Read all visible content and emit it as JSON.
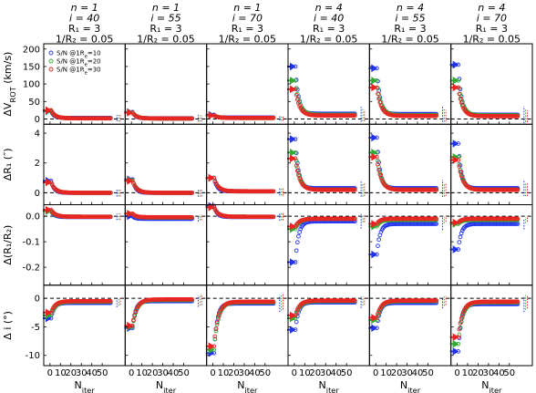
{
  "chart_data": {
    "type": "scatter",
    "columns": [
      {
        "title": [
          "n = 1",
          "i = 40",
          "R₁ = 3",
          "1/R₂ = 0.05"
        ]
      },
      {
        "title": [
          "n = 1",
          "i = 55",
          "R₁ = 3",
          "1/R₂ = 0.05"
        ]
      },
      {
        "title": [
          "n = 1",
          "i = 70",
          "R₁ = 3",
          "1/R₂ = 0.05"
        ]
      },
      {
        "title": [
          "n = 4",
          "i = 40",
          "R₁ = 3",
          "1/R₂ = 0.05"
        ]
      },
      {
        "title": [
          "n = 4",
          "i = 55",
          "R₁ = 3",
          "1/R₂ = 0.05"
        ]
      },
      {
        "title": [
          "n = 4",
          "i = 70",
          "R₁ = 3",
          "1/R₂ = 0.05"
        ]
      }
    ],
    "rows": [
      {
        "ylabel": "ΔV_ROT (km/s)",
        "ylim": [
          -15,
          215
        ],
        "yticks": [
          "0",
          "50",
          "100",
          "150",
          "200"
        ],
        "ytick_values": [
          0,
          50,
          100,
          150,
          200
        ],
        "ref": 0
      },
      {
        "ylabel": "ΔR₁ (″)",
        "ylim": [
          -0.8,
          4.6
        ],
        "yticks": [
          "0",
          "2",
          "4"
        ],
        "ytick_values": [
          0,
          2,
          4
        ],
        "ref": 0
      },
      {
        "ylabel": "Δ(R₁/R₂)",
        "ylim": [
          -0.27,
          0.045
        ],
        "yticks": [
          "0.0",
          "-0.1",
          "-0.2"
        ],
        "ytick_values": [
          0,
          -0.1,
          -0.2
        ],
        "ref": 0
      },
      {
        "ylabel": "Δ i (°)",
        "ylim": [
          -11.8,
          2.3
        ],
        "yticks": [
          "0",
          "-5",
          "-10"
        ],
        "ytick_values": [
          0,
          -5,
          -10
        ],
        "ref": 0
      }
    ],
    "xlabel": "N_iter",
    "xlim": [
      -6,
      72
    ],
    "xticks": [
      "0",
      "10",
      "20",
      "30",
      "40",
      "50"
    ],
    "xtick_values": [
      0,
      10,
      20,
      30,
      40,
      50
    ],
    "legend": {
      "placement": "top-left of first panel",
      "entries": [
        "S/N @1R_e=10",
        "S/N @1R_e=20",
        "S/N @1R_e=30"
      ]
    },
    "series": [
      {
        "name": "S/N @1R_e=10",
        "color": "#2233ee"
      },
      {
        "name": "S/N @1R_e=20",
        "color": "#33aa33"
      },
      {
        "name": "S/N @1R_e=30",
        "color": "#ee2222"
      }
    ],
    "panels": [
      [
        {
          "start": [
            22,
            23,
            25
          ],
          "final": [
            3,
            2,
            2
          ]
        },
        {
          "start": [
            0.8,
            0.7,
            0.7
          ],
          "final": [
            0.0,
            0.0,
            0.0
          ]
        },
        {
          "start": [
            0.02,
            0.02,
            0.025
          ],
          "final": [
            -0.003,
            -0.002,
            -0.002
          ]
        },
        {
          "start": [
            -3.5,
            -3.0,
            -2.5
          ],
          "final": [
            -0.8,
            -0.6,
            -0.5
          ]
        }
      ],
      [
        {
          "start": [
            20,
            19,
            18
          ],
          "final": [
            2,
            1.5,
            1.5
          ]
        },
        {
          "start": [
            0.9,
            0.85,
            0.8
          ],
          "final": [
            0.0,
            0.0,
            0.0
          ]
        },
        {
          "start": [
            0.0,
            0.01,
            0.01
          ],
          "final": [
            -0.01,
            -0.005,
            -0.004
          ]
        },
        {
          "start": [
            -5.2,
            -5.0,
            -4.8
          ],
          "final": [
            -0.5,
            -0.3,
            -0.2
          ]
        }
      ],
      [
        {
          "start": [
            12,
            10,
            10
          ],
          "final": [
            4,
            3,
            3
          ]
        },
        {
          "start": [
            1.0,
            1.0,
            1.0
          ],
          "final": [
            0.1,
            0.1,
            0.1
          ]
        },
        {
          "start": [
            0.04,
            0.035,
            0.035
          ],
          "final": [
            -0.003,
            -0.002,
            -0.002
          ]
        },
        {
          "start": [
            -9.6,
            -9.0,
            -8.4
          ],
          "final": [
            -0.9,
            -0.7,
            -0.6
          ]
        }
      ],
      [
        {
          "start": [
            150,
            110,
            85
          ],
          "final": [
            15,
            12,
            10
          ]
        },
        {
          "start": [
            3.6,
            2.7,
            2.3
          ],
          "final": [
            0.3,
            0.2,
            0.2
          ]
        },
        {
          "start": [
            -0.18,
            -0.05,
            -0.04
          ],
          "final": [
            -0.02,
            -0.01,
            -0.01
          ]
        },
        {
          "start": [
            -5.5,
            -3.5,
            -3.0
          ],
          "final": [
            -0.7,
            -0.5,
            -0.4
          ]
        }
      ],
      [
        {
          "start": [
            145,
            110,
            90
          ],
          "final": [
            14,
            11,
            9
          ]
        },
        {
          "start": [
            3.7,
            2.7,
            2.4
          ],
          "final": [
            0.3,
            0.2,
            0.2
          ]
        },
        {
          "start": [
            -0.15,
            -0.04,
            -0.03
          ],
          "final": [
            -0.03,
            -0.015,
            -0.01
          ]
        },
        {
          "start": [
            -5.2,
            -3.8,
            -3.4
          ],
          "final": [
            -0.8,
            -0.5,
            -0.4
          ]
        }
      ],
      [
        {
          "start": [
            155,
            110,
            90
          ],
          "final": [
            12,
            10,
            8
          ]
        },
        {
          "start": [
            3.3,
            2.4,
            2.2
          ],
          "final": [
            0.3,
            0.2,
            0.2
          ]
        },
        {
          "start": [
            -0.13,
            -0.03,
            -0.025
          ],
          "final": [
            -0.03,
            -0.015,
            -0.01
          ]
        },
        {
          "start": [
            -9.3,
            -8.0,
            -6.8
          ],
          "final": [
            -1.0,
            -0.7,
            -0.6
          ]
        }
      ]
    ]
  }
}
